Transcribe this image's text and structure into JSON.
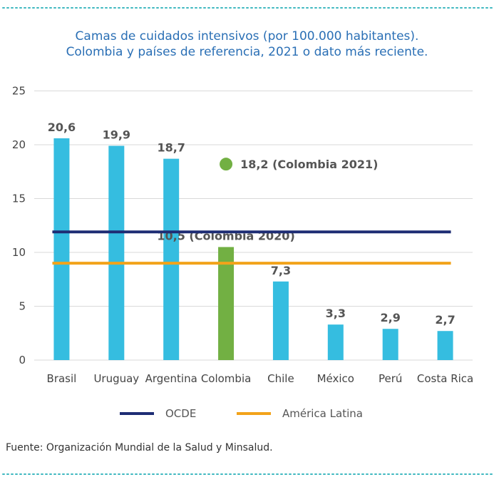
{
  "title_line1": "Camas de cuidados intensivos (por 100.000 habitantes).",
  "title_line2": "Colombia y países de referencia, 2021 o dato más reciente.",
  "source": "Fuente: Organización Mundial de la Salud y Minsalud.",
  "colors": {
    "bar": "#35bde0",
    "highlight": "#72b043",
    "ocde": "#1e2d74",
    "latam": "#f2a31a",
    "grid": "#d9d9d9",
    "dots": "#3fb8c0"
  },
  "chart_data": {
    "type": "bar",
    "categories": [
      "Brasil",
      "Uruguay",
      "Argentina",
      "Colombia",
      "Chile",
      "México",
      "Perú",
      "Costa Rica"
    ],
    "values": [
      20.6,
      19.9,
      18.7,
      10.5,
      7.3,
      3.3,
      2.9,
      2.7
    ],
    "value_labels": [
      "20,6",
      "19,9",
      "18,7",
      "10,5 (Colombia 2020)",
      "7,3",
      "3,3",
      "2,9",
      "2,7"
    ],
    "highlight_category": "Colombia",
    "ylim": [
      0,
      25
    ],
    "yticks": [
      0,
      5,
      10,
      15,
      20,
      25
    ],
    "grid": true,
    "reference_lines": [
      {
        "name": "OCDE",
        "value": 11.9,
        "color": "#1e2d74"
      },
      {
        "name": "América Latina",
        "value": 9.0,
        "color": "#f2a31a"
      }
    ],
    "extra_point": {
      "category": "Colombia",
      "value": 18.2,
      "label": "18,2 (Colombia 2021)",
      "color": "#72b043"
    },
    "legend": {
      "position": "bottom",
      "items": [
        "OCDE",
        "América Latina"
      ]
    }
  }
}
